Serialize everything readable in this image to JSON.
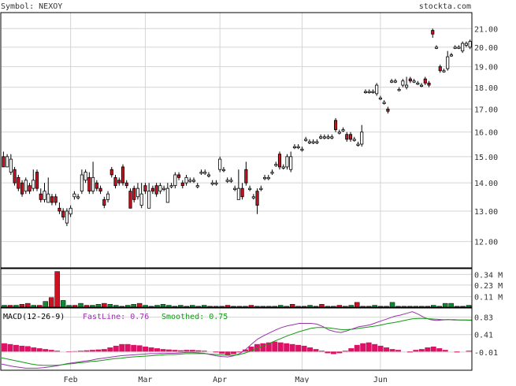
{
  "header": {
    "symbol_text": "Symbol: NEXOY",
    "brand_text": "stockta.com"
  },
  "colors": {
    "up_fill": "#ffffff",
    "down_fill": "#cc1122",
    "grid": "#d4d4d4",
    "volume_down": "#cc1122",
    "volume_up": "#118833",
    "macd_fast": "#9933aa",
    "macd_smoothed": "#119911",
    "histogram": "#dd1166",
    "label": "#333333"
  },
  "chart_data": [
    {
      "type": "candlestick",
      "panel": "price",
      "ylim": [
        11.2,
        21.9
      ],
      "y_scale": "log",
      "y_ticks": [
        12,
        13,
        14,
        15,
        16,
        17,
        18,
        19,
        20,
        21
      ],
      "y_tick_labels": [
        "12.00",
        "13.00",
        "14.00",
        "15.00",
        "16.00",
        "17.00",
        "18.00",
        "19.00",
        "20.00",
        "21.00"
      ],
      "x_month_labels": [
        "Feb",
        "Mar",
        "Apr",
        "May",
        "Jun"
      ],
      "x_month_index": [
        18,
        38,
        58,
        80,
        101
      ],
      "x_range": [
        0,
        120
      ],
      "grid": true,
      "candles": [
        [
          15.0,
          14.6,
          15.2,
          14.6
        ],
        [
          14.6,
          15.0,
          15.1,
          14.6
        ],
        [
          14.4,
          14.9,
          15.1,
          14.3
        ],
        [
          14.5,
          14.0,
          14.6,
          13.9
        ],
        [
          14.2,
          13.8,
          14.3,
          13.7
        ],
        [
          14.0,
          13.6,
          14.1,
          13.5
        ],
        [
          13.7,
          14.1,
          14.2,
          13.6
        ],
        [
          13.9,
          13.7,
          14.0,
          13.6
        ],
        [
          13.8,
          14.1,
          14.5,
          13.7
        ],
        [
          14.4,
          13.8,
          14.5,
          13.7
        ],
        [
          13.6,
          13.4,
          13.8,
          13.3
        ],
        [
          13.4,
          13.7,
          14.0,
          13.3
        ],
        [
          13.3,
          13.6,
          14.2,
          13.3
        ],
        [
          13.5,
          13.3,
          13.6,
          13.2
        ],
        [
          13.5,
          13.3,
          13.6,
          13.2
        ],
        [
          13.1,
          13.0,
          13.3,
          12.9
        ],
        [
          13.0,
          12.8,
          13.1,
          12.7
        ],
        [
          12.6,
          13.0,
          13.1,
          12.5
        ],
        [
          12.9,
          13.1,
          13.2,
          12.8
        ],
        [
          13.5,
          13.6,
          13.7,
          13.4
        ],
        [
          13.5,
          13.5,
          13.6,
          13.4
        ],
        [
          13.7,
          14.3,
          14.5,
          13.6
        ],
        [
          14.1,
          14.4,
          14.5,
          14.0
        ],
        [
          14.2,
          13.7,
          14.4,
          13.6
        ],
        [
          13.7,
          14.2,
          14.8,
          13.6
        ],
        [
          14.0,
          13.8,
          14.1,
          13.7
        ],
        [
          13.8,
          13.7,
          13.9,
          13.6
        ],
        [
          13.4,
          13.2,
          13.5,
          13.1
        ],
        [
          13.4,
          13.6,
          13.7,
          13.3
        ],
        [
          14.5,
          14.3,
          14.6,
          14.2
        ],
        [
          14.2,
          13.9,
          14.3,
          13.8
        ],
        [
          14.1,
          14.0,
          14.2,
          13.9
        ],
        [
          14.6,
          14.0,
          14.7,
          13.9
        ],
        [
          14.0,
          13.9,
          14.1,
          13.8
        ],
        [
          13.7,
          13.1,
          13.8,
          13.1
        ],
        [
          13.8,
          13.4,
          13.9,
          13.3
        ],
        [
          13.5,
          13.8,
          14.0,
          13.4
        ],
        [
          13.2,
          13.6,
          14.0,
          13.1
        ],
        [
          13.9,
          13.7,
          14.0,
          13.6
        ],
        [
          13.1,
          13.7,
          14.0,
          13.1
        ],
        [
          13.8,
          13.7,
          13.9,
          13.6
        ],
        [
          13.9,
          13.6,
          14.0,
          13.5
        ],
        [
          13.7,
          13.9,
          14.0,
          13.6
        ],
        [
          13.8,
          13.8,
          13.9,
          13.7
        ],
        [
          13.3,
          13.8,
          14.0,
          13.3
        ],
        [
          13.9,
          13.9,
          14.0,
          13.8
        ],
        [
          13.9,
          14.3,
          14.4,
          13.8
        ],
        [
          14.3,
          14.2,
          14.4,
          14.1
        ],
        [
          14.0,
          13.9,
          14.1,
          13.8
        ],
        [
          14.0,
          14.2,
          14.3,
          13.9
        ],
        [
          14.1,
          14.1,
          14.2,
          14.0
        ],
        [
          14.1,
          14.1,
          14.2,
          14.0
        ],
        [
          13.9,
          13.9,
          14.0,
          13.8
        ],
        [
          14.4,
          14.4,
          14.5,
          14.3
        ],
        [
          14.4,
          14.4,
          14.5,
          14.3
        ],
        [
          14.3,
          14.3,
          14.4,
          14.2
        ],
        [
          14.0,
          14.0,
          14.1,
          13.9
        ],
        [
          14.0,
          14.0,
          14.1,
          13.9
        ],
        [
          14.5,
          14.9,
          15.0,
          14.4
        ],
        [
          14.5,
          14.5,
          14.6,
          14.4
        ],
        [
          14.1,
          14.1,
          14.2,
          14.0
        ],
        [
          14.1,
          14.1,
          14.2,
          14.0
        ],
        [
          13.8,
          13.8,
          13.9,
          13.7
        ],
        [
          13.4,
          13.8,
          14.5,
          13.4
        ],
        [
          13.8,
          13.5,
          14.0,
          13.4
        ],
        [
          14.5,
          14.0,
          14.8,
          13.9
        ],
        [
          13.8,
          13.8,
          13.9,
          13.7
        ],
        [
          13.5,
          13.5,
          13.6,
          13.4
        ],
        [
          13.7,
          13.2,
          13.8,
          12.9
        ],
        [
          13.8,
          13.8,
          13.9,
          13.7
        ],
        [
          14.2,
          14.2,
          14.3,
          14.1
        ],
        [
          14.2,
          14.2,
          14.3,
          14.1
        ],
        [
          14.4,
          14.4,
          14.5,
          14.3
        ],
        [
          14.7,
          14.7,
          14.8,
          14.6
        ],
        [
          15.1,
          14.6,
          15.2,
          14.5
        ],
        [
          14.6,
          14.6,
          14.7,
          14.5
        ],
        [
          14.6,
          15.0,
          15.1,
          14.5
        ],
        [
          14.5,
          15.0,
          15.2,
          14.4
        ],
        [
          15.4,
          15.4,
          15.5,
          15.3
        ],
        [
          15.4,
          15.4,
          15.5,
          15.3
        ],
        [
          15.3,
          15.3,
          15.4,
          15.2
        ],
        [
          15.7,
          15.7,
          15.8,
          15.6
        ],
        [
          15.6,
          15.6,
          15.7,
          15.5
        ],
        [
          15.6,
          15.6,
          15.7,
          15.5
        ],
        [
          15.6,
          15.6,
          15.7,
          15.5
        ],
        [
          15.8,
          15.8,
          15.9,
          15.7
        ],
        [
          15.8,
          15.8,
          15.9,
          15.7
        ],
        [
          15.8,
          15.8,
          15.9,
          15.7
        ],
        [
          15.8,
          15.8,
          15.9,
          15.7
        ],
        [
          16.5,
          16.1,
          16.6,
          16.0
        ],
        [
          16.0,
          16.0,
          16.1,
          15.9
        ],
        [
          16.1,
          16.1,
          16.2,
          16.0
        ],
        [
          15.9,
          15.7,
          16.0,
          15.6
        ],
        [
          15.9,
          15.7,
          16.0,
          15.6
        ],
        [
          15.7,
          15.7,
          15.8,
          15.6
        ],
        [
          15.5,
          15.5,
          15.6,
          15.4
        ],
        [
          15.5,
          16.0,
          16.3,
          15.4
        ],
        [
          17.8,
          17.8,
          17.9,
          17.7
        ],
        [
          17.8,
          17.8,
          17.9,
          17.7
        ],
        [
          17.8,
          17.8,
          17.9,
          17.7
        ]
      ],
      "candles_tail_note": "",
      "candles_extra": [
        [
          17.7,
          18.1,
          18.2,
          17.6
        ],
        [
          17.5,
          17.5,
          17.6,
          17.4
        ],
        [
          17.3,
          17.3,
          17.4,
          17.2
        ],
        [
          17.0,
          16.9,
          17.1,
          16.8
        ],
        [
          18.3,
          18.3,
          18.4,
          18.2
        ],
        [
          18.3,
          18.3,
          18.4,
          18.2
        ],
        [
          17.9,
          17.9,
          18.0,
          17.8
        ],
        [
          18.1,
          18.3,
          18.4,
          18.0
        ],
        [
          18.0,
          18.1,
          18.5,
          17.9
        ],
        [
          18.4,
          18.3,
          18.5,
          18.2
        ],
        [
          18.3,
          18.3,
          18.4,
          18.2
        ],
        [
          18.2,
          18.2,
          18.3,
          18.1
        ],
        [
          18.1,
          18.1,
          18.2,
          18.0
        ],
        [
          18.4,
          18.2,
          18.5,
          18.1
        ],
        [
          18.2,
          18.1,
          18.3,
          18.0
        ],
        [
          20.9,
          20.7,
          21.0,
          20.5
        ],
        [
          20.0,
          20.0,
          20.1,
          19.9
        ],
        [
          19.0,
          18.8,
          19.1,
          18.7
        ],
        [
          18.8,
          18.8,
          18.9,
          18.7
        ],
        [
          18.9,
          19.5,
          19.8,
          18.8
        ],
        [
          19.6,
          19.6,
          19.7,
          19.5
        ],
        [
          20.0,
          20.0,
          20.1,
          19.9
        ],
        [
          20.0,
          20.0,
          20.1,
          19.9
        ],
        [
          19.8,
          20.2,
          20.3,
          19.7
        ],
        [
          20.1,
          20.2,
          20.3,
          20.0
        ],
        [
          20.0,
          20.3,
          20.4,
          19.9
        ]
      ]
    },
    {
      "type": "bar",
      "panel": "volume",
      "ylim": [
        0,
        0.4
      ],
      "y_ticks": [
        0.11,
        0.23,
        0.34
      ],
      "y_tick_labels": [
        "0.11 M",
        "0.23 M",
        "0.34 M"
      ],
      "values": [
        0.02,
        0.02,
        0.02,
        0.03,
        0.04,
        0.02,
        0.02,
        0.06,
        0.1,
        0.37,
        0.07,
        0.02,
        0.02,
        0.04,
        0.02,
        0.02,
        0.03,
        0.04,
        0.03,
        0.02,
        0.01,
        0.02,
        0.03,
        0.04,
        0.02,
        0.01,
        0.02,
        0.03,
        0.02,
        0.01,
        0.02,
        0.01,
        0.02,
        0.01,
        0.02,
        0.01,
        0.01,
        0.01,
        0.02,
        0.01,
        0.01,
        0.01,
        0.02,
        0.01,
        0.01,
        0.01,
        0.01,
        0.02,
        0.01,
        0.03,
        0.01,
        0.01,
        0.02,
        0.01,
        0.03,
        0.01,
        0.01,
        0.02,
        0.01,
        0.02,
        0.05,
        0.01,
        0.01,
        0.02,
        0.01,
        0.01,
        0.05,
        0.01,
        0.01,
        0.01,
        0.01,
        0.01,
        0.01,
        0.02,
        0.01,
        0.04,
        0.04,
        0.01,
        0.01,
        0.02
      ],
      "up": [
        1,
        0,
        1,
        0,
        0,
        1,
        0,
        1,
        0,
        0,
        1,
        1,
        0,
        1,
        0,
        1,
        1,
        0,
        1,
        1,
        0,
        1,
        1,
        0,
        1,
        0,
        1,
        1,
        1,
        0,
        1,
        0,
        1,
        1,
        1,
        0,
        1,
        1,
        0,
        0,
        0,
        1,
        0,
        1,
        1,
        1,
        1,
        1,
        1,
        0,
        1,
        0,
        1,
        0,
        0,
        1,
        1,
        0,
        1,
        1,
        0,
        1,
        0,
        1,
        0,
        1,
        1,
        0,
        1,
        0,
        1,
        1,
        0,
        1,
        1,
        1,
        1,
        0,
        0,
        1
      ]
    },
    {
      "type": "line",
      "panel": "macd",
      "title": "MACD(12-26-9)",
      "legend": [
        {
          "label": "FastLine: 0.76",
          "name": "FastLine"
        },
        {
          "label": "Smoothed: 0.75",
          "name": "Smoothed"
        }
      ],
      "ylim": [
        -0.45,
        1.05
      ],
      "y_ticks": [
        0.83,
        0.41,
        -0.01
      ],
      "y_tick_labels": [
        "0.83",
        "0.41",
        "-0.01"
      ],
      "series": [
        {
          "name": "FastLine",
          "values": [
            -0.3,
            -0.33,
            -0.36,
            -0.38,
            -0.4,
            -0.4,
            -0.4,
            -0.39,
            -0.37,
            -0.35,
            -0.32,
            -0.29,
            -0.27,
            -0.25,
            -0.23,
            -0.21,
            -0.18,
            -0.16,
            -0.14,
            -0.12,
            -0.1,
            -0.09,
            -0.08,
            -0.07,
            -0.06,
            -0.05,
            -0.05,
            -0.04,
            -0.04,
            -0.04,
            -0.03,
            -0.02,
            -0.02,
            -0.03,
            -0.04,
            -0.07,
            -0.1,
            -0.12,
            -0.13,
            -0.1,
            -0.05,
            0.05,
            0.18,
            0.3,
            0.38,
            0.45,
            0.52,
            0.58,
            0.62,
            0.65,
            0.68,
            0.68,
            0.68,
            0.66,
            0.6,
            0.52,
            0.48,
            0.46,
            0.5,
            0.55,
            0.6,
            0.62,
            0.65,
            0.7,
            0.75,
            0.8,
            0.85,
            0.88,
            0.92,
            0.96,
            0.9,
            0.82,
            0.77,
            0.75,
            0.76,
            0.77,
            0.76,
            0.76,
            0.76,
            0.76
          ]
        },
        {
          "name": "Smoothed",
          "values": [
            -0.15,
            -0.18,
            -0.21,
            -0.24,
            -0.27,
            -0.3,
            -0.32,
            -0.33,
            -0.33,
            -0.33,
            -0.32,
            -0.3,
            -0.29,
            -0.27,
            -0.26,
            -0.24,
            -0.23,
            -0.21,
            -0.19,
            -0.17,
            -0.16,
            -0.14,
            -0.13,
            -0.12,
            -0.11,
            -0.1,
            -0.09,
            -0.08,
            -0.07,
            -0.07,
            -0.06,
            -0.05,
            -0.05,
            -0.05,
            -0.05,
            -0.06,
            -0.07,
            -0.08,
            -0.09,
            -0.09,
            -0.07,
            -0.03,
            0.02,
            0.08,
            0.14,
            0.2,
            0.26,
            0.32,
            0.38,
            0.43,
            0.48,
            0.52,
            0.56,
            0.58,
            0.58,
            0.57,
            0.55,
            0.53,
            0.53,
            0.54,
            0.56,
            0.58,
            0.6,
            0.62,
            0.65,
            0.68,
            0.7,
            0.73,
            0.76,
            0.79,
            0.8,
            0.8,
            0.79,
            0.78,
            0.77,
            0.77,
            0.77,
            0.76,
            0.76,
            0.75
          ]
        }
      ],
      "histogram": [
        0.2,
        0.18,
        0.16,
        0.14,
        0.13,
        0.1,
        0.08,
        0.06,
        0.04,
        0.02,
        0.0,
        -0.01,
        0.01,
        0.02,
        0.03,
        0.04,
        0.05,
        0.06,
        0.1,
        0.14,
        0.18,
        0.18,
        0.16,
        0.15,
        0.12,
        0.1,
        0.08,
        0.06,
        0.05,
        0.04,
        0.03,
        0.04,
        0.04,
        0.03,
        0.02,
        0.0,
        -0.02,
        -0.05,
        -0.08,
        -0.06,
        -0.02,
        0.05,
        0.12,
        0.18,
        0.2,
        0.22,
        0.24,
        0.22,
        0.2,
        0.18,
        0.16,
        0.14,
        0.1,
        0.06,
        0.02,
        -0.04,
        -0.06,
        -0.04,
        0.02,
        0.08,
        0.16,
        0.2,
        0.22,
        0.18,
        0.14,
        0.1,
        0.06,
        0.04,
        0.0,
        -0.02,
        0.04,
        0.06,
        0.1,
        0.12,
        0.08,
        0.04,
        0.0,
        -0.02,
        0.0,
        0.02
      ]
    }
  ]
}
